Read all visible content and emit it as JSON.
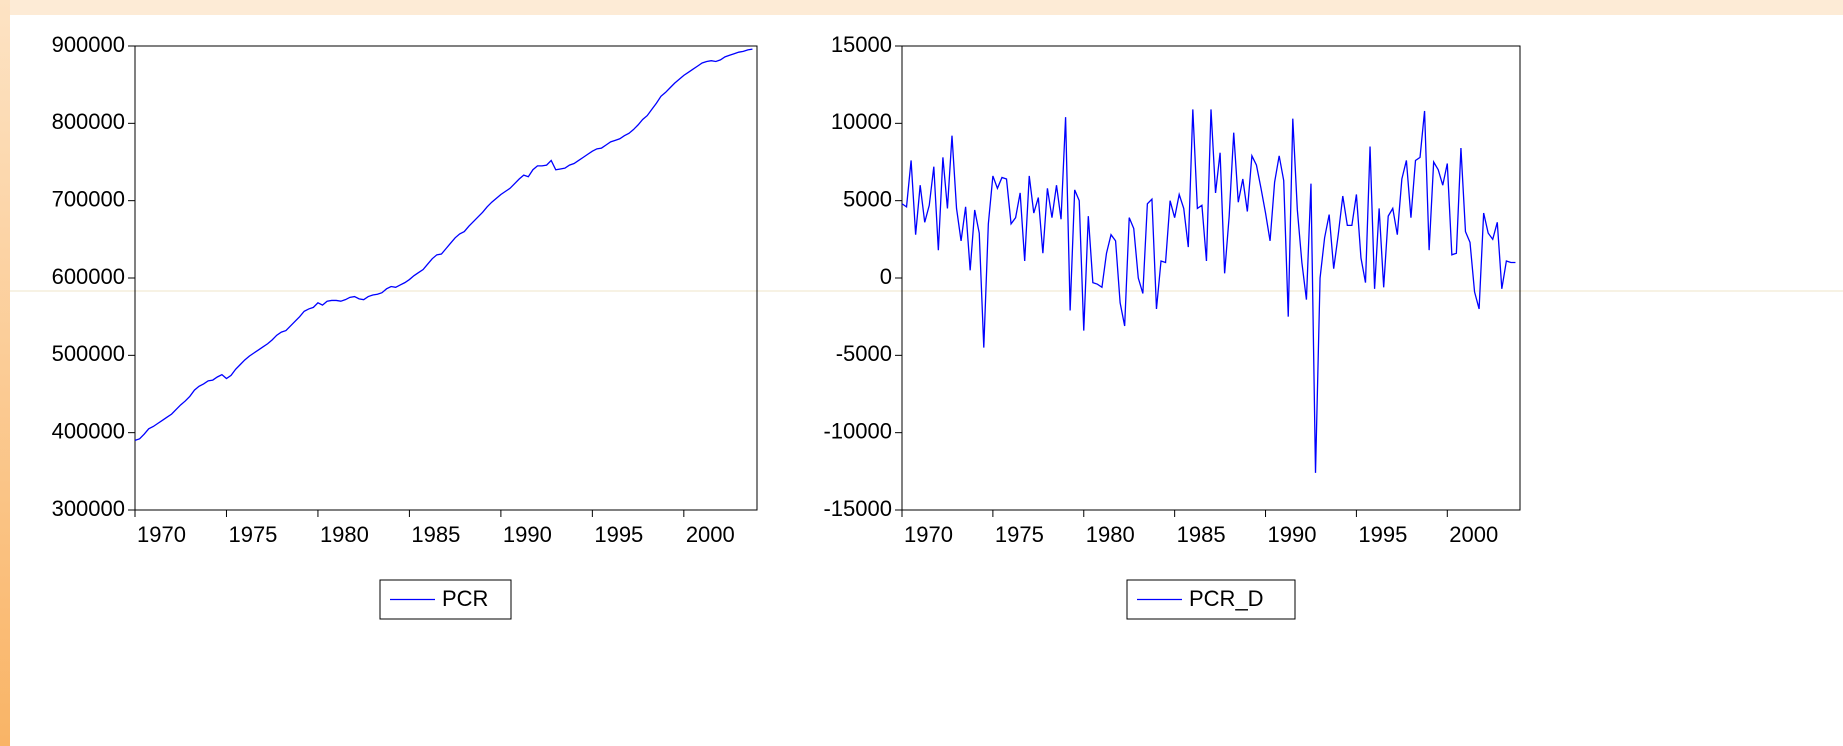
{
  "chart_data": [
    {
      "type": "line",
      "x": [
        1970,
        1970.25,
        1970.5,
        1970.75,
        1971,
        1971.25,
        1971.5,
        1971.75,
        1972,
        1972.25,
        1972.5,
        1972.75,
        1973,
        1973.25,
        1973.5,
        1973.75,
        1974,
        1974.25,
        1974.5,
        1974.75,
        1975,
        1975.25,
        1975.5,
        1975.75,
        1976,
        1976.25,
        1976.5,
        1976.75,
        1977,
        1977.25,
        1977.5,
        1977.75,
        1978,
        1978.25,
        1978.5,
        1978.75,
        1979,
        1979.25,
        1979.5,
        1979.75,
        1980,
        1980.25,
        1980.5,
        1980.75,
        1981,
        1981.25,
        1981.5,
        1981.75,
        1982,
        1982.25,
        1982.5,
        1982.75,
        1983,
        1983.25,
        1983.5,
        1983.75,
        1984,
        1984.25,
        1984.5,
        1984.75,
        1985,
        1985.25,
        1985.5,
        1985.75,
        1986,
        1986.25,
        1986.5,
        1986.75,
        1987,
        1987.25,
        1987.5,
        1987.75,
        1988,
        1988.25,
        1988.5,
        1988.75,
        1989,
        1989.25,
        1989.5,
        1989.75,
        1990,
        1990.25,
        1990.5,
        1990.75,
        1991,
        1991.25,
        1991.5,
        1991.75,
        1992,
        1992.25,
        1992.5,
        1992.75,
        1993,
        1993.25,
        1993.5,
        1993.75,
        1994,
        1994.25,
        1994.5,
        1994.75,
        1995,
        1995.25,
        1995.5,
        1995.75,
        1996,
        1996.25,
        1996.5,
        1996.75,
        1997,
        1997.25,
        1997.5,
        1997.75,
        1998,
        1998.25,
        1998.5,
        1998.75,
        1999,
        1999.25,
        1999.5,
        1999.75,
        2000,
        2000.25,
        2000.5,
        2000.75,
        2001,
        2001.25,
        2001.5,
        2001.75,
        2002,
        2002.25,
        2002.5,
        2002.75,
        2003,
        2003.25,
        2003.5,
        2003.75
      ],
      "series": [
        {
          "name": "PCR",
          "color": "#0000ff",
          "values": [
            390000,
            392000,
            398000,
            405000,
            408000,
            412000,
            416000,
            420000,
            424000,
            430000,
            436000,
            441000,
            447000,
            455000,
            460000,
            463000,
            467000,
            468000,
            472000,
            475000,
            470000,
            474000,
            482000,
            488000,
            494000,
            499000,
            503000,
            507000,
            511000,
            515000,
            520000,
            526000,
            530000,
            532000,
            538000,
            544000,
            550000,
            557000,
            560000,
            562000,
            568000,
            565000,
            570000,
            571000,
            571000,
            570000,
            572000,
            575000,
            576000,
            573000,
            572000,
            576000,
            578000,
            579000,
            581000,
            586000,
            589000,
            588000,
            591000,
            594000,
            598000,
            603000,
            607000,
            611000,
            618000,
            625000,
            630000,
            631000,
            638000,
            645000,
            652000,
            657000,
            660000,
            667000,
            673000,
            679000,
            685000,
            692000,
            698000,
            703000,
            708000,
            712000,
            716000,
            722000,
            728000,
            733000,
            731000,
            740000,
            745000,
            745000,
            746000,
            752000,
            740000,
            741000,
            742000,
            746000,
            748000,
            752000,
            756000,
            760000,
            764000,
            767000,
            768000,
            772000,
            776000,
            778000,
            780000,
            784000,
            787000,
            792000,
            798000,
            805000,
            810000,
            818000,
            826000,
            835000,
            840000,
            846000,
            852000,
            857000,
            862000,
            866000,
            870000,
            874000,
            878000,
            880000,
            881000,
            880000,
            882000,
            886000,
            888000,
            890000,
            892000,
            893000,
            895000,
            896000
          ]
        }
      ],
      "xlim": [
        1970,
        2004
      ],
      "xticks": [
        1970,
        1975,
        1980,
        1985,
        1990,
        1995,
        2000
      ],
      "ylim": [
        300000,
        900000
      ],
      "yticks": [
        300000,
        400000,
        500000,
        600000,
        700000,
        800000,
        900000
      ]
    },
    {
      "type": "line",
      "x": [
        1970,
        1970.25,
        1970.5,
        1970.75,
        1971,
        1971.25,
        1971.5,
        1971.75,
        1972,
        1972.25,
        1972.5,
        1972.75,
        1973,
        1973.25,
        1973.5,
        1973.75,
        1974,
        1974.25,
        1974.5,
        1974.75,
        1975,
        1975.25,
        1975.5,
        1975.75,
        1976,
        1976.25,
        1976.5,
        1976.75,
        1977,
        1977.25,
        1977.5,
        1977.75,
        1978,
        1978.25,
        1978.5,
        1978.75,
        1979,
        1979.25,
        1979.5,
        1979.75,
        1980,
        1980.25,
        1980.5,
        1980.75,
        1981,
        1981.25,
        1981.5,
        1981.75,
        1982,
        1982.25,
        1982.5,
        1982.75,
        1983,
        1983.25,
        1983.5,
        1983.75,
        1984,
        1984.25,
        1984.5,
        1984.75,
        1985,
        1985.25,
        1985.5,
        1985.75,
        1986,
        1986.25,
        1986.5,
        1986.75,
        1987,
        1987.25,
        1987.5,
        1987.75,
        1988,
        1988.25,
        1988.5,
        1988.75,
        1989,
        1989.25,
        1989.5,
        1989.75,
        1990,
        1990.25,
        1990.5,
        1990.75,
        1991,
        1991.25,
        1991.5,
        1991.75,
        1992,
        1992.25,
        1992.5,
        1992.75,
        1993,
        1993.25,
        1993.5,
        1993.75,
        1994,
        1994.25,
        1994.5,
        1994.75,
        1995,
        1995.25,
        1995.5,
        1995.75,
        1996,
        1996.25,
        1996.5,
        1996.75,
        1997,
        1997.25,
        1997.5,
        1997.75,
        1998,
        1998.25,
        1998.5,
        1998.75,
        1999,
        1999.25,
        1999.5,
        1999.75,
        2000,
        2000.25,
        2000.5,
        2000.75,
        2001,
        2001.25,
        2001.5,
        2001.75,
        2002,
        2002.25,
        2002.5,
        2002.75,
        2003,
        2003.25,
        2003.5,
        2003.75
      ],
      "series": [
        {
          "name": "PCR_D",
          "color": "#0000ff",
          "values": [
            4800,
            4600,
            7600,
            2800,
            6000,
            3600,
            4700,
            7200,
            1800,
            7800,
            4500,
            9200,
            4500,
            2400,
            4600,
            500,
            4400,
            2900,
            -4500,
            3500,
            6600,
            5800,
            6500,
            6400,
            3500,
            3900,
            5500,
            1100,
            6600,
            4200,
            5200,
            1600,
            5800,
            3900,
            6000,
            3800,
            10400,
            -2100,
            5700,
            5000,
            -3400,
            4000,
            -300,
            -400,
            -600,
            1600,
            2800,
            2400,
            -1600,
            -3100,
            3900,
            3200,
            0,
            -1000,
            4800,
            5100,
            -2000,
            1100,
            1000,
            5000,
            3900,
            5400,
            4500,
            2000,
            10900,
            4500,
            4700,
            1100,
            10900,
            5500,
            8100,
            300,
            4000,
            9400,
            4900,
            6400,
            4300,
            7900,
            7300,
            5800,
            4200,
            2400,
            6200,
            7900,
            6300,
            -2500,
            10300,
            4400,
            1000,
            -1400,
            6100,
            -12600,
            0,
            2600,
            4100,
            600,
            2800,
            5300,
            3400,
            3400,
            5400,
            1300,
            -300,
            8500,
            -700,
            4500,
            -600,
            4000,
            4500,
            2800,
            6400,
            7600,
            3900,
            7600,
            7800,
            10800,
            1800,
            7500,
            7000,
            6000,
            7400,
            1500,
            1600,
            8400,
            3000,
            2300,
            -900,
            -2000,
            4200,
            2900,
            2500,
            3600,
            -700,
            1100,
            1000,
            1000
          ]
        }
      ],
      "xlim": [
        1970,
        2004
      ],
      "xticks": [
        1970,
        1975,
        1980,
        1985,
        1990,
        1995,
        2000
      ],
      "ylim": [
        -15000,
        15000
      ],
      "yticks": [
        -15000,
        -10000,
        -5000,
        0,
        5000,
        10000,
        15000
      ]
    }
  ]
}
